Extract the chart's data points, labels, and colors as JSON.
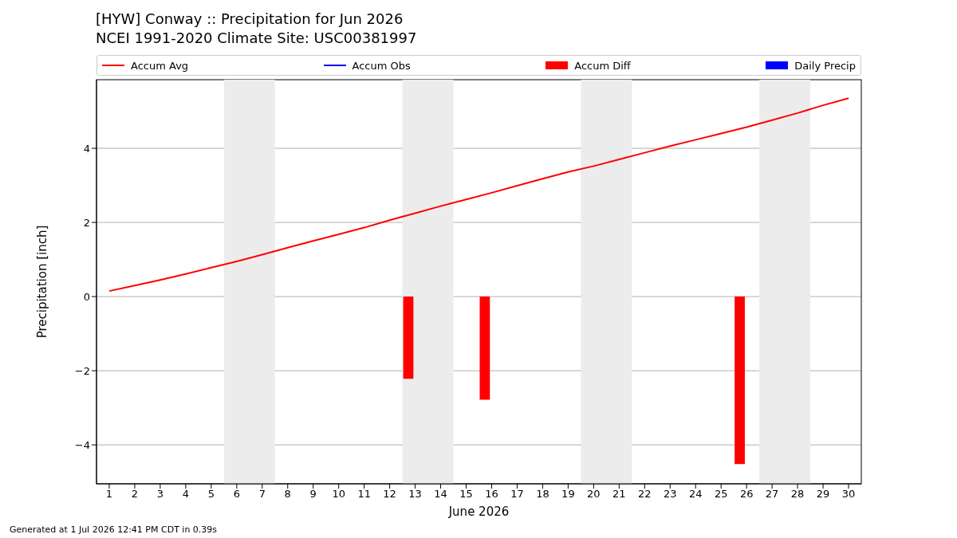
{
  "chart_data": {
    "type": "line",
    "title": "[HYW] Conway :: Precipitation for Jun 2026",
    "subtitle": "NCEI 1991-2020 Climate Site: USC00381997",
    "xlabel": "June 2026",
    "ylabel": "Precipitation [inch]",
    "x": [
      1,
      2,
      3,
      4,
      5,
      6,
      7,
      8,
      9,
      10,
      11,
      12,
      13,
      14,
      15,
      16,
      17,
      18,
      19,
      20,
      21,
      22,
      23,
      24,
      25,
      26,
      27,
      28,
      29,
      30
    ],
    "series": [
      {
        "name": "Accum Avg",
        "color": "#ff0000",
        "values": [
          0.15,
          0.3,
          0.45,
          0.61,
          0.78,
          0.95,
          1.13,
          1.32,
          1.5,
          1.68,
          1.86,
          2.06,
          2.25,
          2.44,
          2.62,
          2.8,
          2.99,
          3.18,
          3.36,
          3.52,
          3.7,
          3.88,
          4.06,
          4.23,
          4.4,
          4.57,
          4.76,
          4.95,
          5.16,
          5.35
        ]
      },
      {
        "name": "Accum Obs",
        "color": "#0000ff",
        "values": [
          null,
          null,
          null,
          null,
          null,
          null,
          null,
          null,
          null,
          null,
          null,
          null,
          null,
          null,
          null,
          null,
          null,
          null,
          null,
          null,
          null,
          null,
          null,
          null,
          null,
          null,
          null,
          null,
          null,
          null
        ]
      },
      {
        "name": "Accum Diff",
        "type": "bar",
        "color": "#ff0000",
        "values": [
          null,
          null,
          null,
          null,
          null,
          null,
          null,
          null,
          null,
          null,
          null,
          null,
          -2.22,
          null,
          null,
          -2.78,
          null,
          null,
          null,
          null,
          null,
          null,
          null,
          null,
          null,
          -4.52,
          null,
          null,
          null,
          null
        ]
      },
      {
        "name": "Daily Precip",
        "type": "bar",
        "color": "#0000ff",
        "values": [
          null,
          null,
          null,
          null,
          null,
          null,
          null,
          null,
          null,
          null,
          null,
          null,
          null,
          null,
          null,
          null,
          null,
          null,
          null,
          null,
          null,
          null,
          null,
          null,
          null,
          null,
          null,
          null,
          null,
          null
        ]
      }
    ],
    "xlim": [
      0.5,
      30.5
    ],
    "xticks": [
      1,
      2,
      3,
      4,
      5,
      6,
      7,
      8,
      9,
      10,
      11,
      12,
      13,
      14,
      15,
      16,
      17,
      18,
      19,
      20,
      21,
      22,
      23,
      24,
      25,
      26,
      27,
      28,
      29,
      30
    ],
    "ylim": [
      -5.05,
      5.85
    ],
    "yticks": [
      {
        "value": -4,
        "label": "−4"
      },
      {
        "value": -2,
        "label": "−2"
      },
      0,
      2,
      4
    ],
    "grid": "y",
    "legend": "top",
    "bands": [
      {
        "axis": "x",
        "from": 5.5,
        "to": 7.5,
        "color": "#ececec"
      },
      {
        "axis": "x",
        "from": 12.5,
        "to": 14.5,
        "color": "#ececec"
      },
      {
        "axis": "x",
        "from": 19.5,
        "to": 21.5,
        "color": "#ececec"
      },
      {
        "axis": "x",
        "from": 26.5,
        "to": 28.5,
        "color": "#ececec"
      }
    ],
    "annotations": [
      "Generated at 1 Jul 2026 12:41 PM CDT in 0.39s"
    ]
  }
}
